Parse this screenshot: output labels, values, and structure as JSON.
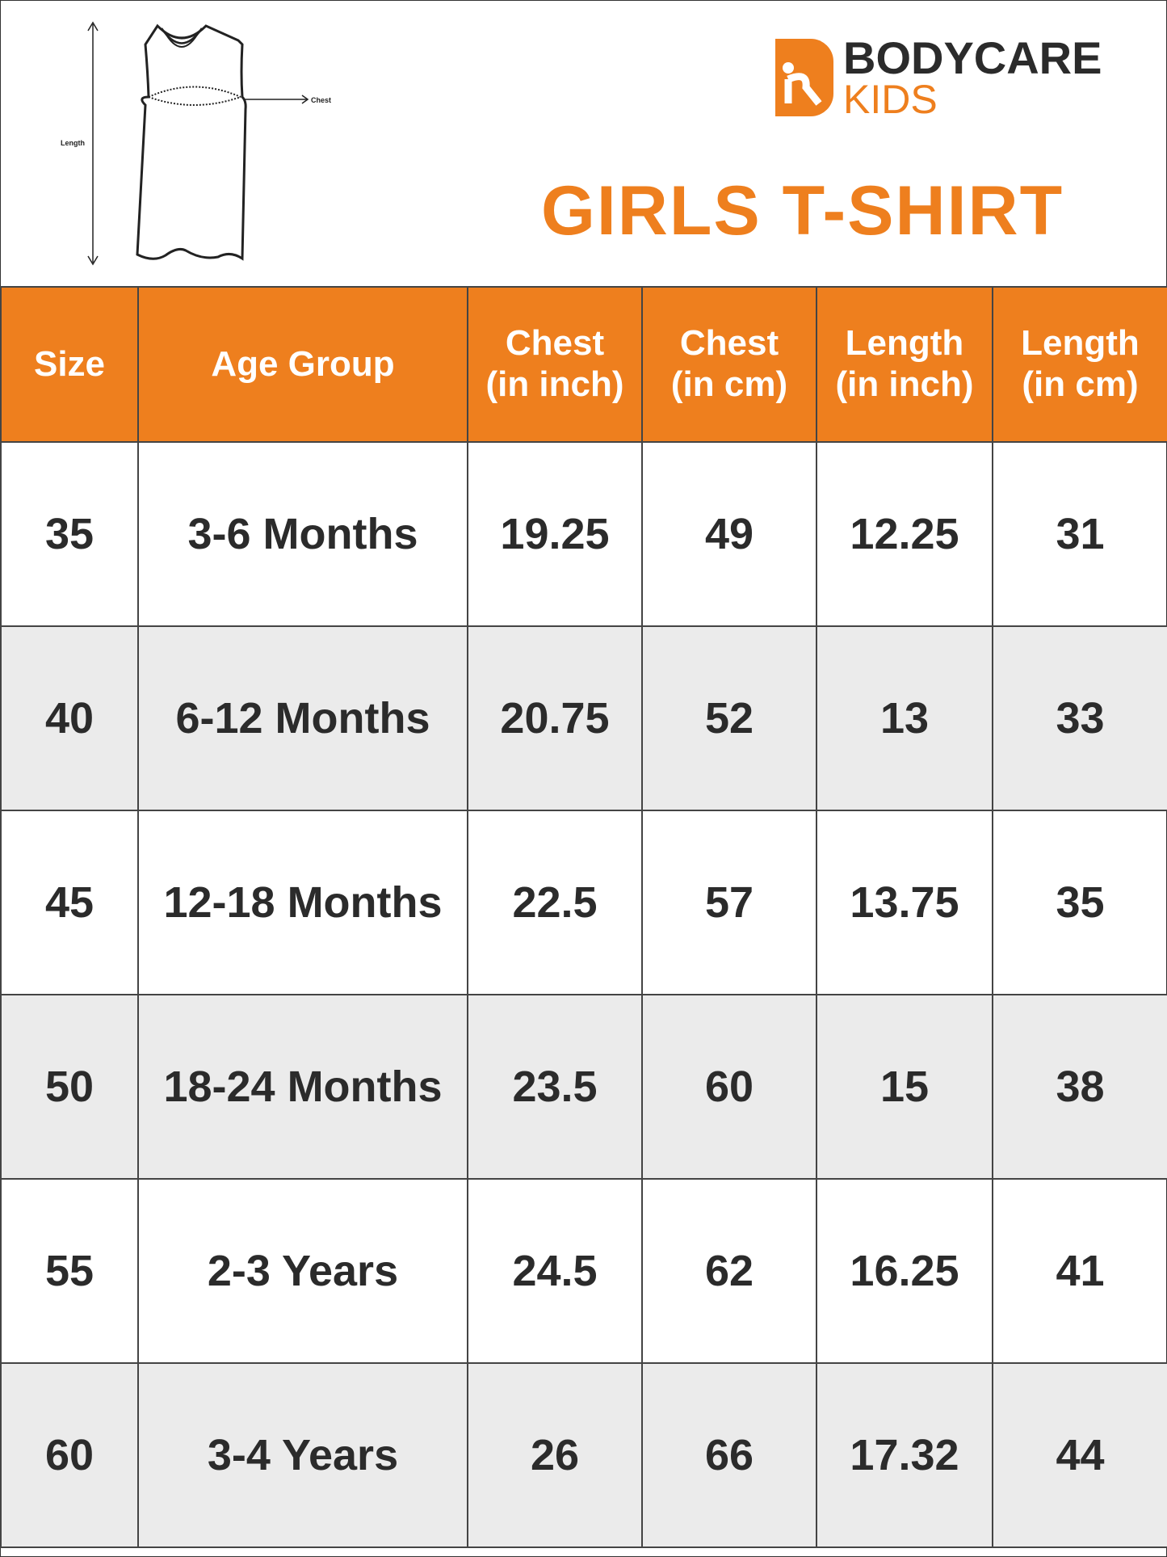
{
  "diagram": {
    "length_label": "Length",
    "chest_label": "Chest"
  },
  "brand": {
    "name_top": "BODYCARE",
    "name_bottom": "KIDS",
    "color": "#ee7f1e"
  },
  "title": "GIRLS T-SHIRT",
  "table": {
    "headers": [
      {
        "line1": "Size",
        "line2": ""
      },
      {
        "line1": "Age Group",
        "line2": ""
      },
      {
        "line1": "Chest",
        "line2": "(in inch)"
      },
      {
        "line1": "Chest",
        "line2": "(in cm)"
      },
      {
        "line1": "Length",
        "line2": "(in inch)"
      },
      {
        "line1": "Length",
        "line2": "(in cm)"
      }
    ],
    "rows": [
      [
        "35",
        "3-6 Months",
        "19.25",
        "49",
        "12.25",
        "31"
      ],
      [
        "40",
        "6-12 Months",
        "20.75",
        "52",
        "13",
        "33"
      ],
      [
        "45",
        "12-18 Months",
        "22.5",
        "57",
        "13.75",
        "35"
      ],
      [
        "50",
        "18-24 Months",
        "23.5",
        "60",
        "15",
        "38"
      ],
      [
        "55",
        "2-3 Years",
        "24.5",
        "62",
        "16.25",
        "41"
      ],
      [
        "60",
        "3-4 Years",
        "26",
        "66",
        "17.32",
        "44"
      ]
    ]
  },
  "colors": {
    "header_bg": "#ee7f1e",
    "alt_row_bg": "#ebebeb",
    "text": "#2b2b2b"
  }
}
